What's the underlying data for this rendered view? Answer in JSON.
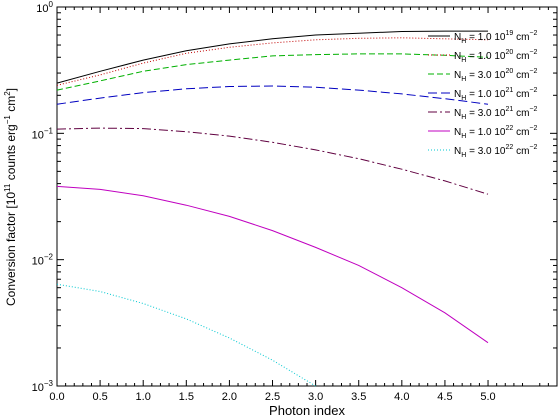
{
  "chart_data": {
    "type": "line",
    "title": "",
    "xlabel": "Photon index",
    "ylabel": {
      "main": "Conversion factor [10",
      "exp1": "11",
      "mid": " counts erg",
      "exp2": "−1",
      "unit": " cm",
      "exp3": "2",
      "close": "]"
    },
    "x_scale": "linear",
    "y_scale": "log",
    "xlim": [
      0.0,
      5.8
    ],
    "ylim": [
      0.001,
      1.0
    ],
    "x_ticks": [
      "0.0",
      "0.5",
      "1.0",
      "1.5",
      "2.0",
      "2.5",
      "3.0",
      "3.5",
      "4.0",
      "4.5",
      "5.0"
    ],
    "y_ticks": [
      {
        "value": 0.001,
        "base": "10",
        "exp": "−3"
      },
      {
        "value": 0.01,
        "base": "10",
        "exp": "−2"
      },
      {
        "value": 0.1,
        "base": "10",
        "exp": "−1"
      },
      {
        "value": 1.0,
        "base": "10",
        "exp": "0"
      }
    ],
    "grid": false,
    "legend_position": "top-right",
    "series": [
      {
        "name": {
          "base": "1.0 10",
          "exp": "19"
        },
        "color": "#000000",
        "dash": "",
        "x": [
          0.0,
          0.5,
          1.0,
          1.5,
          2.0,
          2.5,
          3.0,
          3.5,
          4.0,
          4.5,
          5.0
        ],
        "y": [
          0.25,
          0.31,
          0.38,
          0.45,
          0.51,
          0.56,
          0.6,
          0.62,
          0.64,
          0.645,
          0.645
        ]
      },
      {
        "name": {
          "base": "1.0 10",
          "exp": "20"
        },
        "color": "#c00000",
        "dash": "1,2",
        "x": [
          0.0,
          0.5,
          1.0,
          1.5,
          2.0,
          2.5,
          3.0,
          3.5,
          4.0,
          4.5,
          5.0
        ],
        "y": [
          0.24,
          0.29,
          0.36,
          0.43,
          0.48,
          0.52,
          0.55,
          0.565,
          0.57,
          0.56,
          0.55
        ]
      },
      {
        "name": {
          "base": "3.0 10",
          "exp": "20"
        },
        "color": "#00b000",
        "dash": "6,3",
        "x": [
          0.0,
          0.5,
          1.0,
          1.5,
          2.0,
          2.5,
          3.0,
          3.5,
          4.0,
          4.5,
          5.0
        ],
        "y": [
          0.22,
          0.26,
          0.31,
          0.35,
          0.38,
          0.41,
          0.42,
          0.425,
          0.425,
          0.415,
          0.4
        ]
      },
      {
        "name": {
          "base": "1.0 10",
          "exp": "21"
        },
        "color": "#0000c0",
        "dash": "9,4",
        "x": [
          0.0,
          0.5,
          1.0,
          1.5,
          2.0,
          2.5,
          3.0,
          3.5,
          4.0,
          4.5,
          5.0
        ],
        "y": [
          0.17,
          0.19,
          0.21,
          0.225,
          0.235,
          0.237,
          0.232,
          0.22,
          0.205,
          0.188,
          0.17
        ]
      },
      {
        "name": {
          "base": "3.0 10",
          "exp": "21"
        },
        "color": "#600040",
        "dash": "9,3,2,3",
        "x": [
          0.0,
          0.5,
          1.0,
          1.5,
          2.0,
          2.5,
          3.0,
          3.5,
          4.0,
          4.5,
          5.0
        ],
        "y": [
          0.108,
          0.11,
          0.109,
          0.103,
          0.095,
          0.085,
          0.074,
          0.063,
          0.052,
          0.042,
          0.033
        ]
      },
      {
        "name": {
          "base": "1.0 10",
          "exp": "22"
        },
        "color": "#c000c0",
        "dash": "",
        "x": [
          0.0,
          0.5,
          1.0,
          1.5,
          2.0,
          2.5,
          3.0,
          3.5,
          4.0,
          4.5,
          5.0
        ],
        "y": [
          0.038,
          0.036,
          0.032,
          0.027,
          0.022,
          0.017,
          0.0125,
          0.009,
          0.006,
          0.0038,
          0.0022
        ]
      },
      {
        "name": {
          "base": "3.0 10",
          "exp": "22"
        },
        "color": "#00c8d0",
        "dash": "1,2",
        "x": [
          0.0,
          0.5,
          1.0,
          1.5,
          2.0,
          2.5,
          3.0
        ],
        "y": [
          0.0064,
          0.0056,
          0.0045,
          0.0034,
          0.0024,
          0.0016,
          0.001
        ]
      }
    ],
    "legend_prefix": {
      "n": "N",
      "sub": "H",
      "eq": " = "
    },
    "legend_unit": {
      "base": " cm",
      "exp": "−2"
    }
  }
}
